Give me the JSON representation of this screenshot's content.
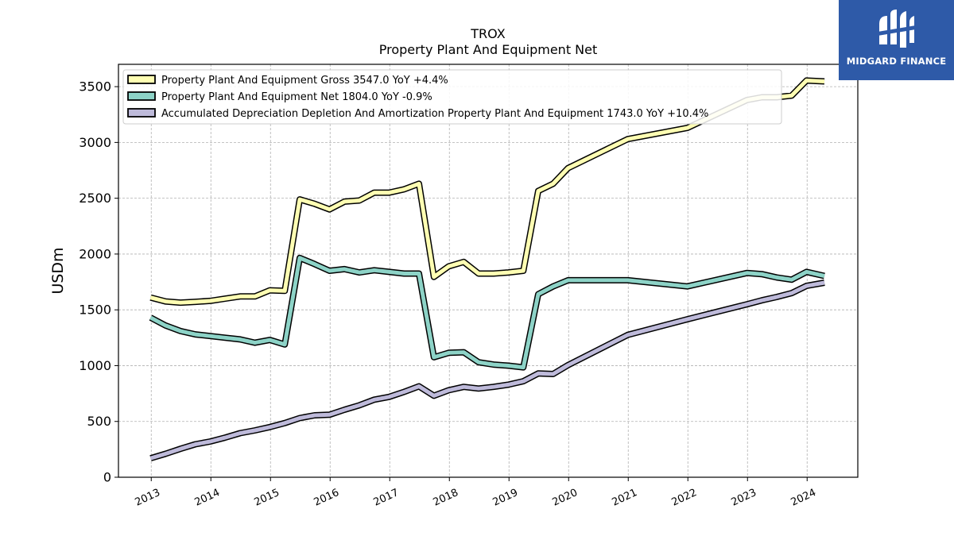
{
  "chart_data": {
    "type": "line",
    "title": "TROX",
    "subtitle": "Property Plant And Equipment Net",
    "ylabel": "USDm",
    "xlabel": "",
    "ylim": [
      0,
      3700
    ],
    "xlim": [
      2012.45,
      2024.85
    ],
    "yticks": [
      0,
      500,
      1000,
      1500,
      2000,
      2500,
      3000,
      3500
    ],
    "xticks": [
      "2013",
      "2014",
      "2015",
      "2016",
      "2017",
      "2018",
      "2019",
      "2020",
      "2021",
      "2022",
      "2023",
      "2024"
    ],
    "grid": true,
    "legend_position": "top-left",
    "series": [
      {
        "name": "Property Plant And Equipment Gross  3547.0 YoY +4.4%",
        "color": "#ffffb3",
        "points": [
          [
            2012.99,
            1610
          ],
          [
            2013.24,
            1575
          ],
          [
            2013.49,
            1565
          ],
          [
            2013.74,
            1572
          ],
          [
            2013.99,
            1580
          ],
          [
            2014.24,
            1600
          ],
          [
            2014.49,
            1620
          ],
          [
            2014.74,
            1620
          ],
          [
            2014.99,
            1675
          ],
          [
            2015.24,
            1670
          ],
          [
            2015.49,
            2490
          ],
          [
            2015.74,
            2450
          ],
          [
            2015.99,
            2400
          ],
          [
            2016.24,
            2470
          ],
          [
            2016.49,
            2480
          ],
          [
            2016.74,
            2550
          ],
          [
            2016.99,
            2550
          ],
          [
            2017.24,
            2580
          ],
          [
            2017.49,
            2630
          ],
          [
            2017.74,
            1795
          ],
          [
            2017.99,
            1890
          ],
          [
            2018.24,
            1930
          ],
          [
            2018.49,
            1825
          ],
          [
            2018.74,
            1825
          ],
          [
            2018.99,
            1835
          ],
          [
            2019.24,
            1850
          ],
          [
            2019.49,
            2565
          ],
          [
            2019.74,
            2630
          ],
          [
            2019.99,
            2770
          ],
          [
            2020.99,
            3030
          ],
          [
            2021.99,
            3130
          ],
          [
            2022.99,
            3380
          ],
          [
            2023.24,
            3405
          ],
          [
            2023.49,
            3405
          ],
          [
            2023.74,
            3420
          ],
          [
            2023.99,
            3555
          ],
          [
            2024.29,
            3547
          ]
        ]
      },
      {
        "name": "Property Plant And Equipment Net  1804.0 YoY -0.9%",
        "color": "#8dd3c7",
        "points": [
          [
            2012.99,
            1430
          ],
          [
            2013.24,
            1360
          ],
          [
            2013.49,
            1310
          ],
          [
            2013.74,
            1280
          ],
          [
            2013.99,
            1265
          ],
          [
            2014.24,
            1250
          ],
          [
            2014.49,
            1235
          ],
          [
            2014.74,
            1205
          ],
          [
            2014.99,
            1230
          ],
          [
            2015.24,
            1190
          ],
          [
            2015.49,
            1965
          ],
          [
            2015.74,
            1910
          ],
          [
            2015.99,
            1850
          ],
          [
            2016.24,
            1865
          ],
          [
            2016.49,
            1835
          ],
          [
            2016.74,
            1855
          ],
          [
            2016.99,
            1840
          ],
          [
            2017.24,
            1825
          ],
          [
            2017.49,
            1825
          ],
          [
            2017.74,
            1075
          ],
          [
            2017.99,
            1115
          ],
          [
            2018.24,
            1120
          ],
          [
            2018.49,
            1030
          ],
          [
            2018.74,
            1010
          ],
          [
            2018.99,
            1000
          ],
          [
            2019.24,
            985
          ],
          [
            2019.49,
            1640
          ],
          [
            2019.74,
            1710
          ],
          [
            2019.99,
            1765
          ],
          [
            2020.99,
            1765
          ],
          [
            2021.99,
            1710
          ],
          [
            2022.99,
            1830
          ],
          [
            2023.24,
            1820
          ],
          [
            2023.49,
            1790
          ],
          [
            2023.74,
            1770
          ],
          [
            2023.99,
            1840
          ],
          [
            2024.29,
            1804
          ]
        ]
      },
      {
        "name": "Accumulated Depreciation Depletion And Amortization Property Plant And Equipment  1743.0 YoY +10.4%",
        "color": "#bebada",
        "points": [
          [
            2012.99,
            170
          ],
          [
            2013.24,
            210
          ],
          [
            2013.49,
            255
          ],
          [
            2013.74,
            295
          ],
          [
            2013.99,
            320
          ],
          [
            2014.24,
            355
          ],
          [
            2014.49,
            395
          ],
          [
            2014.74,
            420
          ],
          [
            2014.99,
            450
          ],
          [
            2015.24,
            485
          ],
          [
            2015.49,
            530
          ],
          [
            2015.74,
            555
          ],
          [
            2015.99,
            560
          ],
          [
            2016.24,
            605
          ],
          [
            2016.49,
            645
          ],
          [
            2016.74,
            695
          ],
          [
            2016.99,
            720
          ],
          [
            2017.24,
            765
          ],
          [
            2017.49,
            815
          ],
          [
            2017.74,
            730
          ],
          [
            2017.99,
            780
          ],
          [
            2018.24,
            810
          ],
          [
            2018.49,
            795
          ],
          [
            2018.74,
            810
          ],
          [
            2018.99,
            830
          ],
          [
            2019.24,
            860
          ],
          [
            2019.49,
            930
          ],
          [
            2019.74,
            925
          ],
          [
            2019.99,
            1005
          ],
          [
            2020.99,
            1275
          ],
          [
            2021.99,
            1415
          ],
          [
            2022.99,
            1550
          ],
          [
            2023.24,
            1585
          ],
          [
            2023.49,
            1615
          ],
          [
            2023.74,
            1650
          ],
          [
            2023.99,
            1715
          ],
          [
            2024.29,
            1743
          ]
        ]
      }
    ]
  },
  "logo": {
    "text": "MIDGARD FINANCE",
    "icon": "midgard-logo-icon",
    "bg": "#2e5aa8"
  }
}
